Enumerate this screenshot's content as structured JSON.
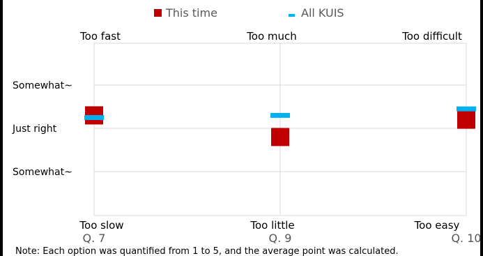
{
  "legend": {
    "this_time": "This time",
    "all_kuis": "All KUIS"
  },
  "colors": {
    "this_time": "#c00000",
    "all_kuis": "#00b0f0",
    "grid": "#d9d9d9"
  },
  "chart_data": {
    "type": "scatter",
    "title": "",
    "xlabel": "",
    "ylabel": "",
    "legend_position": "top-center",
    "grid": true,
    "ylim": [
      1,
      5
    ],
    "y_tick_labels": [
      "Somewhat~",
      "Just right",
      "Somewhat~"
    ],
    "categories": [
      "Q. 7",
      "Q. 9",
      "Q. 10"
    ],
    "top_labels": [
      "Too fast",
      "Too much",
      "Too difficult"
    ],
    "bottom_labels": [
      "Too slow",
      "Too little",
      "Too easy"
    ],
    "series": [
      {
        "name": "This time",
        "marker": "square",
        "values": [
          3.3,
          2.8,
          3.2
        ]
      },
      {
        "name": "All KUIS",
        "marker": "dash",
        "values": [
          3.25,
          3.3,
          3.45
        ]
      }
    ]
  },
  "note": "Note:  Each option was quantified from 1 to 5, and the average point was calculated."
}
